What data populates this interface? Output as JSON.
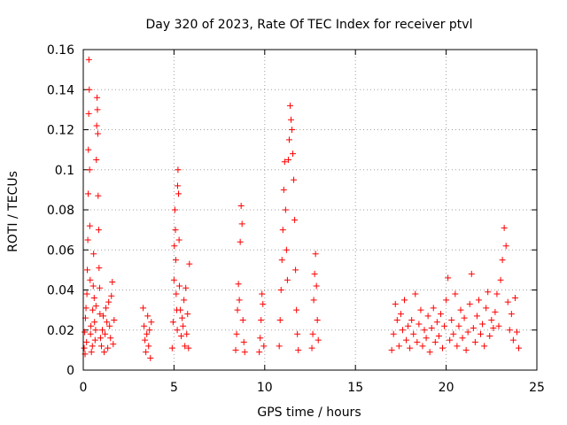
{
  "chart_data": {
    "type": "scatter",
    "title": "Day 320 of 2023, Rate Of TEC Index for receiver ptvl",
    "xlabel": "GPS time / hours",
    "ylabel": "ROTI / TECUs",
    "xlim": [
      0,
      25
    ],
    "ylim": [
      0,
      0.16
    ],
    "xticks": [
      0,
      5,
      10,
      15,
      20,
      25
    ],
    "yticks": [
      0,
      0.02,
      0.04,
      0.06,
      0.08,
      0.1,
      0.12,
      0.14,
      0.16
    ],
    "grid": true,
    "marker": "plus",
    "color": "#ff0000",
    "series": [
      {
        "points": [
          [
            0.05,
            0.011
          ],
          [
            0.08,
            0.019
          ],
          [
            0.1,
            0.008
          ],
          [
            0.12,
            0.026
          ],
          [
            0.15,
            0.031
          ],
          [
            0.18,
            0.014
          ],
          [
            0.2,
            0.038
          ],
          [
            0.22,
            0.05
          ],
          [
            0.25,
            0.065
          ],
          [
            0.27,
            0.088
          ],
          [
            0.28,
            0.11
          ],
          [
            0.3,
            0.128
          ],
          [
            0.31,
            0.155
          ],
          [
            0.33,
            0.14
          ],
          [
            0.35,
            0.1
          ],
          [
            0.36,
            0.072
          ],
          [
            0.38,
            0.045
          ],
          [
            0.4,
            0.018
          ],
          [
            0.42,
            0.022
          ],
          [
            0.45,
            0.009
          ],
          [
            0.5,
            0.012
          ],
          [
            0.52,
            0.03
          ],
          [
            0.55,
            0.042
          ],
          [
            0.57,
            0.058
          ],
          [
            0.6,
            0.036
          ],
          [
            0.62,
            0.024
          ],
          [
            0.65,
            0.015
          ],
          [
            0.68,
            0.02
          ],
          [
            0.7,
            0.032
          ],
          [
            0.72,
            0.105
          ],
          [
            0.74,
            0.122
          ],
          [
            0.76,
            0.136
          ],
          [
            0.78,
            0.13
          ],
          [
            0.8,
            0.118
          ],
          [
            0.82,
            0.087
          ],
          [
            0.85,
            0.07
          ],
          [
            0.87,
            0.051
          ],
          [
            0.9,
            0.041
          ],
          [
            0.92,
            0.028
          ],
          [
            0.95,
            0.016
          ],
          [
            1.0,
            0.012
          ],
          [
            1.05,
            0.02
          ],
          [
            1.1,
            0.027
          ],
          [
            1.15,
            0.009
          ],
          [
            1.2,
            0.018
          ],
          [
            1.25,
            0.031
          ],
          [
            1.3,
            0.024
          ],
          [
            1.35,
            0.011
          ],
          [
            1.4,
            0.034
          ],
          [
            1.45,
            0.022
          ],
          [
            1.5,
            0.016
          ],
          [
            1.55,
            0.037
          ],
          [
            1.6,
            0.044
          ],
          [
            1.65,
            0.013
          ],
          [
            1.7,
            0.025
          ],
          [
            3.3,
            0.031
          ],
          [
            3.35,
            0.022
          ],
          [
            3.4,
            0.015
          ],
          [
            3.45,
            0.009
          ],
          [
            3.5,
            0.018
          ],
          [
            3.55,
            0.027
          ],
          [
            3.6,
            0.012
          ],
          [
            3.65,
            0.02
          ],
          [
            3.7,
            0.006
          ],
          [
            3.75,
            0.024
          ],
          [
            4.9,
            0.011
          ],
          [
            4.95,
            0.024
          ],
          [
            5.0,
            0.045
          ],
          [
            5.02,
            0.062
          ],
          [
            5.05,
            0.08
          ],
          [
            5.08,
            0.07
          ],
          [
            5.1,
            0.055
          ],
          [
            5.12,
            0.038
          ],
          [
            5.15,
            0.03
          ],
          [
            5.18,
            0.02
          ],
          [
            5.2,
            0.092
          ],
          [
            5.22,
            0.1
          ],
          [
            5.25,
            0.088
          ],
          [
            5.28,
            0.065
          ],
          [
            5.3,
            0.042
          ],
          [
            5.35,
            0.03
          ],
          [
            5.4,
            0.017
          ],
          [
            5.45,
            0.026
          ],
          [
            5.5,
            0.022
          ],
          [
            5.55,
            0.035
          ],
          [
            5.6,
            0.012
          ],
          [
            5.65,
            0.041
          ],
          [
            5.7,
            0.018
          ],
          [
            5.75,
            0.028
          ],
          [
            5.8,
            0.011
          ],
          [
            5.85,
            0.053
          ],
          [
            8.4,
            0.01
          ],
          [
            8.45,
            0.018
          ],
          [
            8.5,
            0.03
          ],
          [
            8.55,
            0.043
          ],
          [
            8.6,
            0.035
          ],
          [
            8.65,
            0.064
          ],
          [
            8.7,
            0.082
          ],
          [
            8.75,
            0.073
          ],
          [
            8.8,
            0.025
          ],
          [
            8.85,
            0.014
          ],
          [
            8.9,
            0.009
          ],
          [
            9.7,
            0.009
          ],
          [
            9.75,
            0.016
          ],
          [
            9.8,
            0.025
          ],
          [
            9.85,
            0.038
          ],
          [
            9.9,
            0.033
          ],
          [
            9.95,
            0.012
          ],
          [
            10.8,
            0.012
          ],
          [
            10.85,
            0.025
          ],
          [
            10.9,
            0.04
          ],
          [
            10.95,
            0.055
          ],
          [
            11.0,
            0.07
          ],
          [
            11.05,
            0.09
          ],
          [
            11.1,
            0.104
          ],
          [
            11.15,
            0.08
          ],
          [
            11.2,
            0.06
          ],
          [
            11.25,
            0.045
          ],
          [
            11.3,
            0.105
          ],
          [
            11.35,
            0.115
          ],
          [
            11.4,
            0.132
          ],
          [
            11.45,
            0.125
          ],
          [
            11.5,
            0.12
          ],
          [
            11.55,
            0.108
          ],
          [
            11.6,
            0.095
          ],
          [
            11.65,
            0.075
          ],
          [
            11.7,
            0.05
          ],
          [
            11.75,
            0.03
          ],
          [
            11.8,
            0.018
          ],
          [
            11.85,
            0.01
          ],
          [
            12.6,
            0.011
          ],
          [
            12.65,
            0.018
          ],
          [
            12.7,
            0.035
          ],
          [
            12.75,
            0.048
          ],
          [
            12.8,
            0.058
          ],
          [
            12.85,
            0.042
          ],
          [
            12.9,
            0.025
          ],
          [
            12.95,
            0.015
          ],
          [
            17.0,
            0.01
          ],
          [
            17.1,
            0.018
          ],
          [
            17.2,
            0.033
          ],
          [
            17.3,
            0.025
          ],
          [
            17.4,
            0.012
          ],
          [
            17.5,
            0.028
          ],
          [
            17.6,
            0.02
          ],
          [
            17.7,
            0.035
          ],
          [
            17.8,
            0.015
          ],
          [
            17.9,
            0.022
          ],
          [
            18.0,
            0.011
          ],
          [
            18.1,
            0.025
          ],
          [
            18.2,
            0.018
          ],
          [
            18.3,
            0.038
          ],
          [
            18.4,
            0.014
          ],
          [
            18.5,
            0.023
          ],
          [
            18.6,
            0.03
          ],
          [
            18.7,
            0.012
          ],
          [
            18.8,
            0.02
          ],
          [
            18.9,
            0.016
          ],
          [
            19.0,
            0.027
          ],
          [
            19.1,
            0.009
          ],
          [
            19.2,
            0.021
          ],
          [
            19.3,
            0.031
          ],
          [
            19.4,
            0.014
          ],
          [
            19.5,
            0.024
          ],
          [
            19.6,
            0.017
          ],
          [
            19.7,
            0.028
          ],
          [
            19.8,
            0.011
          ],
          [
            19.9,
            0.022
          ],
          [
            20.0,
            0.035
          ],
          [
            20.1,
            0.046
          ],
          [
            20.2,
            0.015
          ],
          [
            20.3,
            0.025
          ],
          [
            20.4,
            0.018
          ],
          [
            20.5,
            0.038
          ],
          [
            20.6,
            0.012
          ],
          [
            20.7,
            0.022
          ],
          [
            20.8,
            0.03
          ],
          [
            20.9,
            0.016
          ],
          [
            21.0,
            0.026
          ],
          [
            21.1,
            0.01
          ],
          [
            21.2,
            0.019
          ],
          [
            21.3,
            0.033
          ],
          [
            21.4,
            0.048
          ],
          [
            21.5,
            0.021
          ],
          [
            21.6,
            0.014
          ],
          [
            21.7,
            0.027
          ],
          [
            21.8,
            0.035
          ],
          [
            21.9,
            0.018
          ],
          [
            22.0,
            0.023
          ],
          [
            22.1,
            0.012
          ],
          [
            22.2,
            0.031
          ],
          [
            22.3,
            0.039
          ],
          [
            22.4,
            0.017
          ],
          [
            22.5,
            0.025
          ],
          [
            22.6,
            0.021
          ],
          [
            22.7,
            0.029
          ],
          [
            22.8,
            0.038
          ],
          [
            22.9,
            0.022
          ],
          [
            23.0,
            0.045
          ],
          [
            23.1,
            0.055
          ],
          [
            23.2,
            0.071
          ],
          [
            23.3,
            0.062
          ],
          [
            23.4,
            0.034
          ],
          [
            23.5,
            0.02
          ],
          [
            23.6,
            0.028
          ],
          [
            23.7,
            0.015
          ],
          [
            23.8,
            0.036
          ],
          [
            23.9,
            0.019
          ],
          [
            24.0,
            0.011
          ]
        ]
      }
    ]
  }
}
